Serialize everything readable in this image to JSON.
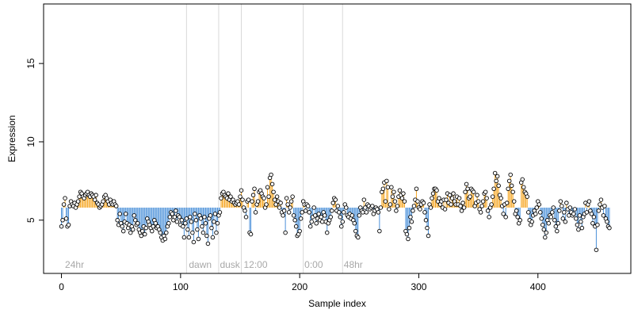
{
  "chart_data": {
    "type": "scatter",
    "title": "",
    "xlabel": "Sample index",
    "ylabel": "Expression",
    "xlim": [
      -15,
      478
    ],
    "ylim": [
      1.6,
      18.8
    ],
    "x_ticks": [
      0,
      100,
      200,
      300,
      400
    ],
    "y_ticks": [
      5,
      10,
      15
    ],
    "grid": false,
    "legend": "none",
    "baseline": 5.8,
    "colors": {
      "above": "#f5a623",
      "below": "#4a90d9",
      "point_fill": "#ffffff",
      "point_stroke": "#000000",
      "separator": "#d9d9d9",
      "annotation": "#a8a8a8",
      "axis": "#000000"
    },
    "separators": [
      105,
      132,
      151,
      203,
      236
    ],
    "annotations": [
      {
        "label": "24hr",
        "x": 3
      },
      {
        "label": "dawn",
        "x": 107
      },
      {
        "label": "dusk",
        "x": 133
      },
      {
        "label": "12:00",
        "x": 153
      },
      {
        "label": "0:00",
        "x": 204
      },
      {
        "label": "48hr",
        "x": 237
      }
    ],
    "series": [
      {
        "x_start": 0,
        "x_step": 1,
        "values": [
          4.6,
          5.0,
          6.0,
          6.4,
          5.1,
          4.6,
          4.7,
          5.9,
          6.2,
          6.0,
          5.9,
          6.1,
          5.8,
          6.0,
          6.2,
          6.5,
          6.8,
          6.7,
          6.5,
          6.4,
          6.6,
          6.7,
          6.8,
          6.6,
          6.5,
          6.7,
          6.6,
          6.5,
          6.3,
          6.6,
          6.1,
          6.0,
          5.8,
          5.9,
          6.0,
          6.2,
          6.5,
          6.6,
          6.4,
          6.2,
          6.0,
          6.3,
          6.1,
          6.0,
          6.2,
          6.0,
          5.9,
          5.0,
          4.7,
          5.4,
          4.8,
          4.6,
          4.3,
          4.9,
          5.4,
          4.8,
          4.5,
          4.7,
          4.2,
          4.6,
          4.4,
          5.3,
          5.0,
          4.7,
          4.8,
          4.4,
          4.2,
          4.0,
          4.3,
          4.6,
          4.1,
          4.5,
          5.1,
          4.9,
          4.7,
          4.5,
          4.3,
          4.6,
          5.0,
          4.8,
          4.5,
          4.6,
          4.4,
          4.2,
          3.9,
          3.7,
          4.0,
          3.8,
          4.2,
          4.6,
          4.8,
          5.2,
          5.5,
          5.4,
          5.0,
          5.2,
          5.6,
          4.9,
          5.3,
          5.2,
          4.7,
          5.0,
          4.6,
          3.9,
          4.8,
          5.1,
          4.4,
          3.9,
          5.2,
          4.9,
          4.2,
          3.6,
          5.4,
          5.0,
          4.4,
          3.8,
          5.3,
          5.1,
          4.6,
          4.2,
          5.2,
          4.8,
          4.0,
          3.5,
          5.1,
          5.3,
          4.5,
          3.9,
          4.9,
          5.4,
          4.2,
          4.8,
          5.3,
          5.5,
          6.4,
          6.7,
          6.8,
          6.6,
          6.5,
          6.4,
          6.7,
          6.3,
          6.5,
          6.2,
          6.3,
          6.1,
          6.0,
          6.1,
          6.2,
          6.0,
          6.5,
          6.9,
          6.3,
          5.8,
          5.6,
          5.2,
          6.2,
          6.3,
          4.2,
          4.1,
          6.2,
          6.6,
          7.0,
          5.5,
          6.0,
          6.2,
          6.8,
          6.9,
          6.7,
          6.5,
          6.4,
          5.8,
          6.0,
          7.1,
          6.5,
          7.7,
          7.9,
          7.3,
          6.8,
          6.3,
          6.0,
          6.5,
          6.2,
          5.8,
          6.1,
          5.5,
          5.3,
          5.6,
          4.2,
          6.4,
          6.0,
          5.5,
          5.8,
          6.2,
          6.5,
          5.3,
          5.0,
          4.6,
          4.0,
          4.1,
          4.3,
          5.1,
          5.5,
          6.2,
          6.0,
          5.6,
          6.0,
          5.9,
          5.5,
          4.6,
          4.9,
          5.2,
          5.8,
          5.3,
          4.8,
          5.1,
          5.4,
          5.0,
          5.2,
          4.9,
          5.5,
          5.3,
          4.9,
          4.2,
          4.8,
          5.0,
          5.2,
          5.6,
          6.1,
          6.4,
          6.3,
          5.6,
          5.9,
          5.5,
          5.2,
          4.6,
          4.9,
          5.5,
          6.0,
          5.8,
          5.3,
          5.2,
          5.4,
          5.1,
          5.3,
          5.0,
          4.8,
          4.3,
          4.0,
          3.9,
          5.3,
          5.8,
          5.6,
          5.5,
          6.3,
          5.8,
          5.5,
          6.0,
          5.9,
          5.7,
          5.8,
          5.9,
          5.4,
          5.6,
          5.8,
          5.7,
          5.5,
          4.3,
          5.8,
          6.8,
          7.0,
          7.4,
          6.2,
          7.5,
          7.1,
          5.7,
          6.0,
          7.1,
          6.5,
          6.8,
          6.2,
          5.6,
          5.9,
          6.5,
          6.9,
          6.6,
          6.4,
          6.7,
          6.2,
          4.3,
          4.1,
          3.8,
          4.5,
          5.2,
          4.9,
          5.6,
          5.9,
          6.3,
          7.0,
          6.2,
          5.8,
          5.7,
          6.0,
          6.2,
          6.1,
          5.5,
          5.0,
          4.5,
          4.0,
          6.0,
          5.8,
          6.4,
          6.7,
          7.0,
          7.0,
          6.9,
          6.2,
          6.4,
          6.0,
          6.2,
          5.8,
          6.3,
          5.7,
          6.3,
          6.7,
          6.1,
          6.6,
          6.0,
          6.4,
          6.7,
          6.2,
          6.0,
          6.5,
          6.0,
          6.4,
          5.9,
          5.6,
          6.1,
          5.8,
          6.8,
          7.3,
          7.0,
          6.4,
          6.5,
          7.0,
          6.9,
          6.8,
          5.9,
          6.1,
          6.6,
          6.2,
          5.7,
          5.5,
          5.9,
          6.2,
          6.7,
          6.8,
          6.4,
          5.6,
          5.2,
          5.8,
          6.0,
          6.5,
          7.0,
          8.0,
          7.5,
          7.8,
          7.2,
          6.6,
          6.4,
          5.9,
          5.4,
          6.0,
          5.2,
          6.1,
          7.0,
          7.5,
          7.9,
          7.2,
          6.8,
          6.2,
          5.4,
          5.6,
          5.2,
          4.8,
          5.0,
          7.4,
          7.6,
          7.1,
          6.8,
          6.7,
          6.5,
          5.5,
          5.0,
          4.7,
          4.9,
          5.3,
          5.6,
          5.4,
          5.8,
          6.2,
          6.0,
          5.5,
          5.1,
          4.7,
          4.4,
          3.9,
          4.2,
          5.0,
          4.8,
          5.3,
          5.2,
          5.5,
          5.8,
          5.0,
          4.6,
          4.3,
          4.8,
          5.6,
          6.2,
          5.9,
          5.1,
          5.5,
          4.9,
          6.1,
          5.7,
          5.3,
          5.8,
          5.5,
          5.3,
          5.4,
          5.7,
          5.1,
          4.7,
          4.4,
          5.3,
          4.9,
          4.5,
          5.2,
          5.4,
          6.1,
          5.5,
          6.0,
          6.2,
          5.6,
          5.4,
          4.8,
          5.2,
          4.6,
          3.1,
          4.7,
          5.6,
          6.0,
          6.3,
          5.8,
          5.3,
          5.9,
          5.1,
          4.9,
          4.6,
          4.5
        ]
      }
    ]
  }
}
